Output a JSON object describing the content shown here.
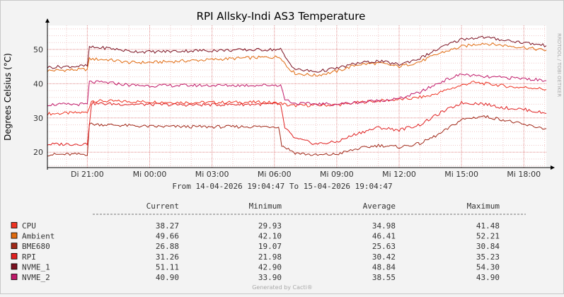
{
  "chart_data": {
    "type": "line",
    "title": "RPI Allsky-Indi AS3 Temperature",
    "ylabel": "Degrees Celsius (°C)",
    "xlabel": "",
    "ylim": [
      15.5,
      57
    ],
    "y_ticks": [
      20,
      30,
      40,
      50
    ],
    "x_ticks": [
      "Di 21:00",
      "Mi 00:00",
      "Mi 03:00",
      "Mi 06:00",
      "Mi 09:00",
      "Mi 12:00",
      "Mi 15:00",
      "Mi 18:00"
    ],
    "x_tick_hours": [
      21,
      24,
      27,
      30,
      33,
      36,
      39,
      42
    ],
    "x_range_hours": [
      19.08,
      43.08
    ],
    "grid": true,
    "side_label": "RRDTOOL / TOBI OETIKER",
    "range_text": "From 14-04-2026 19:04:47 To 15-04-2026 19:04:47",
    "footer": "Generated by Cacti®",
    "columns": [
      "Current",
      "Minimum",
      "Average",
      "Maximum"
    ],
    "series": [
      {
        "name": "CPU",
        "color": "#ee3322",
        "current": "38.27",
        "minimum": "29.93",
        "average": "34.98",
        "maximum": "41.48",
        "points": [
          [
            19.08,
            31.2
          ],
          [
            21.0,
            31.6
          ],
          [
            21.2,
            35.0
          ],
          [
            23.0,
            34.8
          ],
          [
            26.0,
            34.5
          ],
          [
            29.5,
            34.6
          ],
          [
            30.4,
            34.2
          ],
          [
            30.7,
            33.6
          ],
          [
            33.0,
            33.8
          ],
          [
            34.5,
            34.8
          ],
          [
            35.5,
            35.2
          ],
          [
            36.5,
            35.6
          ],
          [
            37.5,
            36.5
          ],
          [
            38.5,
            38.6
          ],
          [
            39.5,
            40.4
          ],
          [
            40.5,
            39.8
          ],
          [
            41.5,
            39.0
          ],
          [
            42.5,
            38.8
          ],
          [
            43.08,
            38.3
          ]
        ]
      },
      {
        "name": "Ambient",
        "color": "#e06b10",
        "current": "49.66",
        "minimum": "42.10",
        "average": "46.41",
        "maximum": "52.21",
        "points": [
          [
            19.08,
            43.8
          ],
          [
            21.0,
            44.2
          ],
          [
            21.1,
            47.2
          ],
          [
            22.0,
            47.0
          ],
          [
            23.0,
            46.2
          ],
          [
            24.0,
            46.2
          ],
          [
            25.5,
            46.6
          ],
          [
            27.5,
            47.2
          ],
          [
            29.0,
            47.6
          ],
          [
            30.3,
            47.8
          ],
          [
            30.6,
            45.0
          ],
          [
            31.0,
            43.0
          ],
          [
            32.0,
            42.4
          ],
          [
            33.0,
            43.6
          ],
          [
            34.0,
            45.6
          ],
          [
            35.0,
            46.0
          ],
          [
            36.0,
            45.0
          ],
          [
            37.0,
            46.4
          ],
          [
            38.0,
            49.0
          ],
          [
            39.0,
            50.8
          ],
          [
            40.0,
            51.8
          ],
          [
            41.0,
            51.2
          ],
          [
            42.0,
            50.6
          ],
          [
            43.08,
            49.7
          ]
        ]
      },
      {
        "name": "BME680",
        "color": "#a02818",
        "current": "26.88",
        "minimum": "19.07",
        "average": "25.63",
        "maximum": "30.84",
        "points": [
          [
            19.08,
            19.3
          ],
          [
            21.0,
            19.4
          ],
          [
            21.1,
            28.2
          ],
          [
            22.0,
            28.0
          ],
          [
            24.0,
            27.5
          ],
          [
            27.0,
            27.4
          ],
          [
            30.2,
            27.5
          ],
          [
            30.35,
            22.0
          ],
          [
            31.0,
            19.8
          ],
          [
            32.0,
            19.1
          ],
          [
            33.0,
            19.4
          ],
          [
            34.0,
            21.0
          ],
          [
            35.0,
            22.0
          ],
          [
            36.0,
            21.5
          ],
          [
            37.0,
            22.5
          ],
          [
            38.0,
            25.5
          ],
          [
            39.0,
            29.5
          ],
          [
            40.0,
            30.5
          ],
          [
            41.0,
            29.5
          ],
          [
            42.0,
            28.0
          ],
          [
            43.08,
            26.9
          ]
        ]
      },
      {
        "name": "RPI",
        "color": "#e02020",
        "current": "31.26",
        "minimum": "21.98",
        "average": "30.42",
        "maximum": "35.23",
        "points": [
          [
            19.08,
            22.3
          ],
          [
            21.0,
            22.4
          ],
          [
            21.2,
            34.2
          ],
          [
            23.0,
            34.0
          ],
          [
            26.0,
            33.8
          ],
          [
            29.0,
            34.0
          ],
          [
            30.3,
            34.0
          ],
          [
            30.5,
            27.0
          ],
          [
            31.0,
            24.0
          ],
          [
            32.0,
            22.4
          ],
          [
            33.0,
            23.0
          ],
          [
            34.0,
            25.5
          ],
          [
            35.0,
            27.2
          ],
          [
            36.0,
            26.5
          ],
          [
            37.0,
            28.0
          ],
          [
            38.0,
            31.5
          ],
          [
            39.0,
            34.4
          ],
          [
            40.0,
            34.2
          ],
          [
            41.0,
            33.0
          ],
          [
            42.0,
            32.5
          ],
          [
            43.08,
            31.3
          ]
        ]
      },
      {
        "name": "NVME_1",
        "color": "#7a1020",
        "current": "51.11",
        "minimum": "42.90",
        "average": "48.84",
        "maximum": "54.30",
        "points": [
          [
            19.08,
            44.8
          ],
          [
            21.0,
            45.2
          ],
          [
            21.1,
            50.6
          ],
          [
            22.0,
            50.4
          ],
          [
            23.0,
            49.5
          ],
          [
            24.0,
            49.3
          ],
          [
            26.0,
            49.6
          ],
          [
            28.0,
            49.8
          ],
          [
            30.3,
            50.0
          ],
          [
            30.6,
            47.0
          ],
          [
            31.0,
            44.2
          ],
          [
            32.0,
            43.5
          ],
          [
            33.0,
            44.5
          ],
          [
            34.0,
            46.0
          ],
          [
            35.0,
            46.6
          ],
          [
            36.0,
            45.6
          ],
          [
            37.0,
            47.4
          ],
          [
            38.0,
            50.5
          ],
          [
            39.0,
            53.0
          ],
          [
            40.0,
            53.6
          ],
          [
            41.0,
            52.8
          ],
          [
            42.0,
            52.0
          ],
          [
            43.08,
            51.1
          ]
        ]
      },
      {
        "name": "NVME_2",
        "color": "#c01a6a",
        "current": "40.90",
        "minimum": "33.90",
        "average": "38.55",
        "maximum": "43.90",
        "points": [
          [
            19.08,
            33.9
          ],
          [
            21.0,
            34.0
          ],
          [
            21.1,
            40.5
          ],
          [
            22.0,
            40.3
          ],
          [
            23.0,
            39.6
          ],
          [
            24.0,
            39.4
          ],
          [
            26.0,
            39.5
          ],
          [
            28.0,
            39.5
          ],
          [
            30.3,
            39.6
          ],
          [
            30.5,
            35.5
          ],
          [
            31.0,
            34.2
          ],
          [
            33.0,
            34.0
          ],
          [
            34.5,
            34.8
          ],
          [
            36.0,
            35.6
          ],
          [
            37.0,
            37.5
          ],
          [
            38.0,
            40.5
          ],
          [
            39.0,
            42.8
          ],
          [
            40.0,
            42.0
          ],
          [
            41.0,
            41.8
          ],
          [
            42.0,
            41.5
          ],
          [
            43.08,
            40.9
          ]
        ]
      }
    ]
  }
}
